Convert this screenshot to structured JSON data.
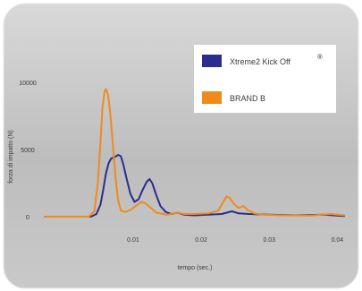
{
  "chart_data": {
    "type": "line",
    "xlabel": "tempo (sec.)",
    "ylabel": "forza di impatto (N)",
    "xlim": [
      -0.003,
      0.041
    ],
    "ylim": [
      0,
      10000
    ],
    "x_ticks": [
      {
        "value": 0.01,
        "label": "0.01"
      },
      {
        "value": 0.02,
        "label": "0.02"
      },
      {
        "value": 0.03,
        "label": "0.03"
      },
      {
        "value": 0.04,
        "label": "0.04"
      }
    ],
    "y_ticks": [
      {
        "value": 0,
        "label": "0"
      },
      {
        "value": 5000,
        "label": "5000"
      },
      {
        "value": 10000,
        "label": "10000"
      }
    ],
    "legend_position": "top-right",
    "grid": false,
    "series": [
      {
        "name": "Xtreme2 Kick Off",
        "color": "#2b2d8c",
        "points": [
          [
            -0.003,
            0
          ],
          [
            0.0038,
            0
          ],
          [
            0.0046,
            200
          ],
          [
            0.0052,
            900
          ],
          [
            0.0056,
            2000
          ],
          [
            0.006,
            3200
          ],
          [
            0.0064,
            4000
          ],
          [
            0.0068,
            4350
          ],
          [
            0.0073,
            4450
          ],
          [
            0.0078,
            4600
          ],
          [
            0.0082,
            4500
          ],
          [
            0.0086,
            3800
          ],
          [
            0.009,
            2900
          ],
          [
            0.0096,
            1700
          ],
          [
            0.0102,
            1100
          ],
          [
            0.0108,
            1300
          ],
          [
            0.0114,
            2000
          ],
          [
            0.012,
            2600
          ],
          [
            0.0124,
            2800
          ],
          [
            0.0128,
            2500
          ],
          [
            0.0134,
            1600
          ],
          [
            0.014,
            800
          ],
          [
            0.0148,
            350
          ],
          [
            0.0156,
            200
          ],
          [
            0.0165,
            300
          ],
          [
            0.0175,
            150
          ],
          [
            0.019,
            100
          ],
          [
            0.021,
            150
          ],
          [
            0.023,
            200
          ],
          [
            0.0245,
            400
          ],
          [
            0.0255,
            250
          ],
          [
            0.027,
            200
          ],
          [
            0.03,
            150
          ],
          [
            0.034,
            100
          ],
          [
            0.038,
            150
          ],
          [
            0.041,
            50
          ]
        ]
      },
      {
        "name": "BRAND B",
        "color": "#f08a1c",
        "points": [
          [
            -0.003,
            0
          ],
          [
            0.0035,
            0
          ],
          [
            0.0043,
            400
          ],
          [
            0.0048,
            2500
          ],
          [
            0.0052,
            5500
          ],
          [
            0.0055,
            8200
          ],
          [
            0.0058,
            9300
          ],
          [
            0.006,
            9500
          ],
          [
            0.0063,
            9100
          ],
          [
            0.0066,
            7900
          ],
          [
            0.007,
            5500
          ],
          [
            0.0074,
            3000
          ],
          [
            0.0078,
            1200
          ],
          [
            0.0082,
            450
          ],
          [
            0.0088,
            350
          ],
          [
            0.0096,
            500
          ],
          [
            0.0104,
            800
          ],
          [
            0.0112,
            1100
          ],
          [
            0.0118,
            1000
          ],
          [
            0.0126,
            650
          ],
          [
            0.0134,
            300
          ],
          [
            0.015,
            150
          ],
          [
            0.0165,
            300
          ],
          [
            0.0175,
            200
          ],
          [
            0.019,
            200
          ],
          [
            0.021,
            250
          ],
          [
            0.0225,
            450
          ],
          [
            0.0232,
            1050
          ],
          [
            0.0237,
            1500
          ],
          [
            0.0242,
            1400
          ],
          [
            0.0248,
            950
          ],
          [
            0.0255,
            650
          ],
          [
            0.0262,
            800
          ],
          [
            0.0268,
            500
          ],
          [
            0.0278,
            250
          ],
          [
            0.029,
            150
          ],
          [
            0.032,
            100
          ],
          [
            0.036,
            80
          ],
          [
            0.039,
            200
          ],
          [
            0.041,
            100
          ]
        ]
      }
    ]
  }
}
